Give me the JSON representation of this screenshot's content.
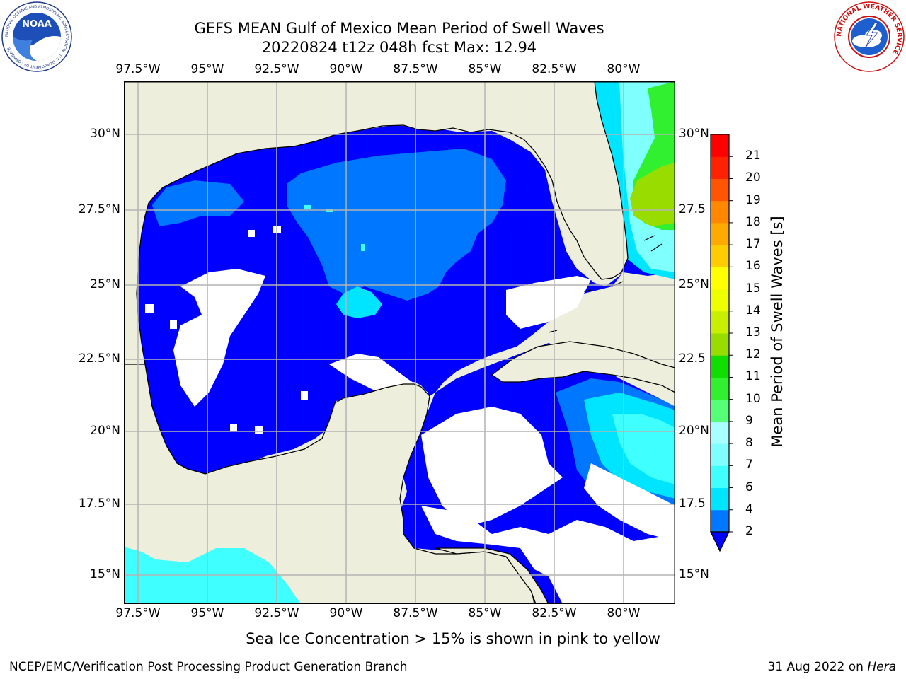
{
  "header": {
    "title_line1": "GEFS MEAN Gulf of Mexico Mean Period of Swell Waves",
    "title_line2": "20220824 t12z 048h fcst   Max: 12.94"
  },
  "map": {
    "lon_ticks": [
      "97.5°W",
      "95°W",
      "92.5°W",
      "90°W",
      "87.5°W",
      "85°W",
      "82.5°W",
      "80°W"
    ],
    "lat_ticks_left": [
      "30°N",
      "27.5°N",
      "25°N",
      "22.5°N",
      "20°N",
      "17.5°N",
      "15°N"
    ],
    "lat_ticks_right": [
      "30°N",
      "27.5",
      "25°N",
      "22.5",
      "20°N",
      "17.5",
      "15°N"
    ],
    "colors": {
      "land": "#eeeedc",
      "ocean_no_data": "#ffffff",
      "grid": "#b4b4b4",
      "coast": "#000000"
    }
  },
  "colorbar": {
    "title": "Mean Period of Swell Waves [s]",
    "labels": [
      "2",
      "4",
      "6",
      "7",
      "8",
      "9",
      "10",
      "11",
      "12",
      "13",
      "14",
      "15",
      "16",
      "17",
      "18",
      "19",
      "20",
      "21"
    ],
    "colors": [
      "#0077ff",
      "#00e5ff",
      "#40ffff",
      "#80ffff",
      "#a8ffff",
      "#55ff77",
      "#30f030",
      "#10dd00",
      "#99dd00",
      "#c8ee00",
      "#eeff00",
      "#ffff00",
      "#ffcc00",
      "#ffaa00",
      "#ff8800",
      "#ff5500",
      "#ff2200",
      "#ff0000"
    ],
    "under_color": "#0000ff"
  },
  "note": "Sea Ice Concentration > 15% is shown in pink to yellow",
  "footer": {
    "left": "NCEP/EMC/Verification Post Processing Product Generation Branch",
    "date": "31 Aug 2022 on ",
    "host": "Hera"
  },
  "logos": {
    "noaa_text": "NOAA",
    "noaa_ring": "NATIONAL OCEANIC AND ATMOSPHERIC ADMINISTRATION · U.S. DEPARTMENT OF COMMERCE",
    "nws_ring": "NATIONAL WEATHER SERVICE"
  }
}
